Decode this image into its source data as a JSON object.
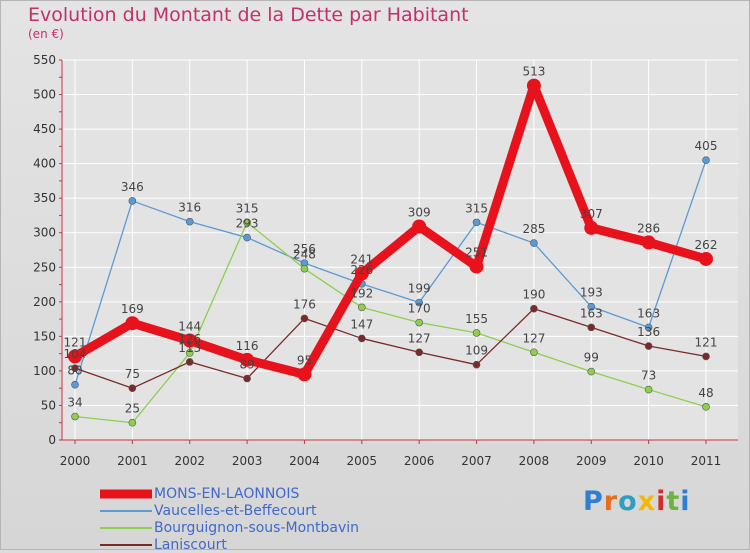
{
  "page": {
    "title": "Evolution du Montant de la Dette par Habitant",
    "subtitle": "(en €)",
    "brand_text": [
      "P",
      "r",
      "o",
      "x",
      "i",
      "t",
      "i"
    ],
    "brand_colors": [
      "#2f7fd0",
      "#e96b1d",
      "#2f9ec0",
      "#f5b800",
      "#cf2e2e",
      "#6db33f",
      "#2f7fd0"
    ]
  },
  "chart_data": {
    "type": "line",
    "title": "Evolution du Montant de la Dette par Habitant",
    "ylabel": "(en €)",
    "xlabel": "",
    "x": [
      "2000",
      "2001",
      "2002",
      "2003",
      "2004",
      "2005",
      "2006",
      "2007",
      "2008",
      "2009",
      "2010",
      "2011"
    ],
    "ylim": [
      0,
      550
    ],
    "yticks": [
      0,
      50,
      100,
      150,
      200,
      250,
      300,
      350,
      400,
      450,
      500,
      550
    ],
    "grid": true,
    "legend_position": "bottom-left",
    "series": [
      {
        "name": "MONS-EN-LAONNOIS",
        "color": "#e8121c",
        "values": [
          121,
          169,
          144,
          116,
          95,
          241,
          309,
          251,
          513,
          307,
          286,
          262
        ]
      },
      {
        "name": "Vaucelles-et-Beffecourt",
        "color": "#5b9bd5",
        "values": [
          80,
          346,
          316,
          293,
          256,
          226,
          199,
          315,
          285,
          193,
          163,
          405
        ]
      },
      {
        "name": "Bourguignon-sous-Montbavin",
        "color": "#8ecf4d",
        "values": [
          34,
          25,
          126,
          315,
          248,
          192,
          170,
          155,
          127,
          99,
          73,
          48
        ]
      },
      {
        "name": "Laniscourt",
        "color": "#7a2a2a",
        "values": [
          104,
          75,
          113,
          89,
          176,
          147,
          127,
          109,
          190,
          163,
          136,
          121
        ]
      }
    ]
  }
}
